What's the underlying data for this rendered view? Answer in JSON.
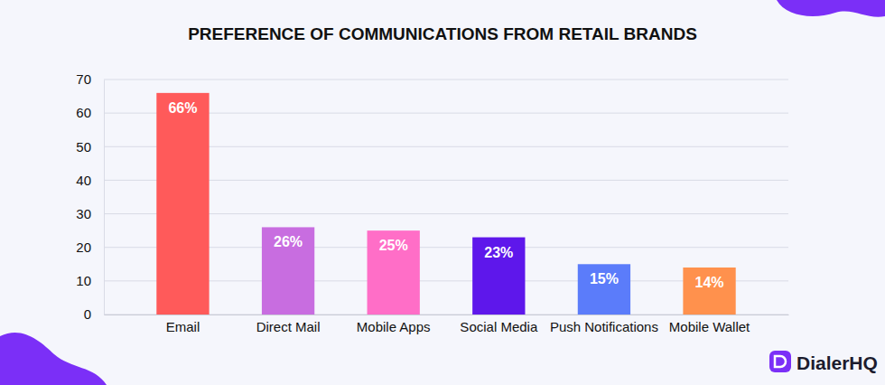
{
  "chart_data": {
    "type": "bar",
    "title": "PREFERENCE OF COMMUNICATIONS FROM RETAIL BRANDS",
    "categories": [
      "Email",
      "Direct Mail",
      "Mobile Apps",
      "Social Media",
      "Push Notifications",
      "Mobile Wallet"
    ],
    "values": [
      66,
      26,
      25,
      23,
      15,
      14
    ],
    "value_labels": [
      "66%",
      "26%",
      "25%",
      "23%",
      "15%",
      "14%"
    ],
    "colors": [
      "#ff5a5a",
      "#c86de0",
      "#ff6ec7",
      "#5e17eb",
      "#5b7cfa",
      "#ff914d"
    ],
    "ylim": [
      0,
      70
    ],
    "yticks": [
      0,
      10,
      20,
      30,
      40,
      50,
      60,
      70
    ],
    "grid": true,
    "data_labels": true,
    "watermark": "DialerHQ"
  }
}
